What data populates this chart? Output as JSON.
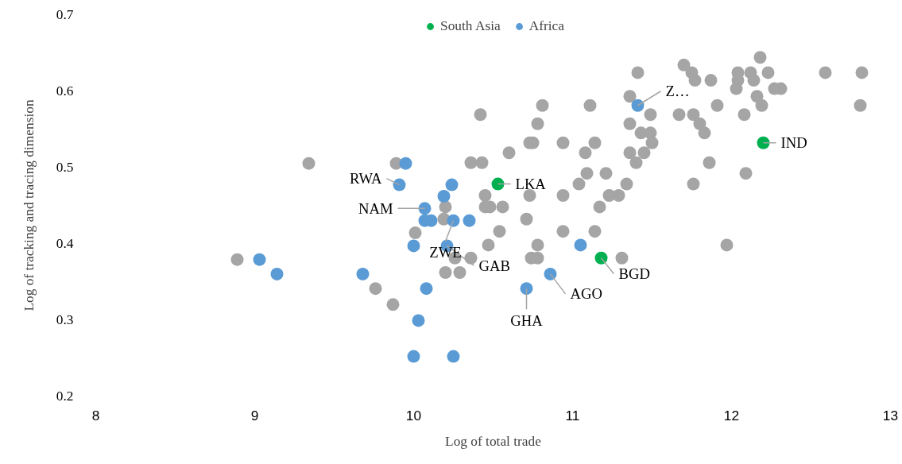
{
  "chart_data": {
    "type": "scatter",
    "xlabel": "Log of total trade",
    "ylabel": "Log of tracking and tracing dimension",
    "xlim": [
      8,
      13
    ],
    "ylim": [
      0.2,
      0.7
    ],
    "xticks": [
      8,
      9,
      10,
      11,
      12,
      13
    ],
    "yticks": [
      0.2,
      0.3,
      0.4,
      0.5,
      0.6,
      0.7
    ],
    "grid": false,
    "legend": "top",
    "marker": "circle",
    "series": [
      {
        "color": "#a5a5a5",
        "x": [
          12.18,
          11.7,
          11.75,
          11.77,
          11.41,
          11.87,
          12.04,
          12.12,
          12.23,
          12.04,
          12.14,
          12.59,
          12.82,
          12.03,
          12.27,
          12.31,
          12.16,
          12.19,
          11.36,
          12.81,
          11.91,
          10.42,
          10.81,
          11.11,
          11.49,
          11.67,
          11.76,
          12.08,
          10.78,
          11.36,
          11.8,
          11.43,
          11.49,
          11.83,
          11.5,
          10.6,
          10.73,
          10.75,
          10.94,
          11.14,
          11.08,
          11.36,
          11.45,
          11.4,
          11.86,
          10.36,
          10.43,
          11.09,
          11.21,
          12.09,
          11.04,
          11.34,
          11.76,
          10.45,
          10.73,
          10.94,
          11.23,
          11.29,
          10.2,
          10.45,
          10.48,
          10.56,
          11.17,
          10.19,
          10.71,
          10.54,
          10.94,
          11.14,
          11.97,
          10.47,
          10.78,
          11.31,
          10.36,
          10.74,
          10.78,
          10.26,
          10.2,
          10.29,
          9.34,
          9.89,
          10.01,
          8.89,
          9.76,
          9.87
        ],
        "values": [
          0.644,
          0.634,
          0.624,
          0.614,
          0.624,
          0.614,
          0.624,
          0.624,
          0.624,
          0.614,
          0.614,
          0.624,
          0.624,
          0.603,
          0.603,
          0.603,
          0.593,
          0.581,
          0.593,
          0.581,
          0.581,
          0.569,
          0.581,
          0.581,
          0.569,
          0.569,
          0.569,
          0.569,
          0.557,
          0.557,
          0.557,
          0.545,
          0.545,
          0.545,
          0.532,
          0.519,
          0.532,
          0.532,
          0.532,
          0.532,
          0.519,
          0.519,
          0.519,
          0.506,
          0.506,
          0.506,
          0.506,
          0.492,
          0.492,
          0.492,
          0.478,
          0.478,
          0.478,
          0.463,
          0.463,
          0.463,
          0.463,
          0.463,
          0.448,
          0.448,
          0.448,
          0.448,
          0.448,
          0.432,
          0.432,
          0.416,
          0.416,
          0.416,
          0.398,
          0.398,
          0.398,
          0.381,
          0.381,
          0.381,
          0.381,
          0.381,
          0.362,
          0.362,
          0.505,
          0.505,
          0.414,
          0.379,
          0.341,
          0.32
        ]
      },
      {
        "name": "South Asia",
        "color": "#00b050",
        "x": [
          10.53,
          12.2,
          11.18
        ],
        "values": [
          0.478,
          0.532,
          0.381
        ]
      },
      {
        "name": "Africa",
        "color": "#5b9bd5",
        "x": [
          9.03,
          9.14,
          9.68,
          9.95,
          9.91,
          10.24,
          10.19,
          10.07,
          10.07,
          10.11,
          10.25,
          10.35,
          10.0,
          10.21,
          10.08,
          10.03,
          10.0,
          10.25,
          10.71,
          10.86,
          11.05,
          11.41
        ],
        "values": [
          0.379,
          0.36,
          0.36,
          0.505,
          0.477,
          0.477,
          0.462,
          0.446,
          0.43,
          0.43,
          0.43,
          0.43,
          0.397,
          0.397,
          0.341,
          0.299,
          0.252,
          0.252,
          0.341,
          0.36,
          0.398,
          0.581
        ]
      }
    ],
    "annotations": [
      {
        "text": "LKA",
        "x": 10.53,
        "y": 0.478
      },
      {
        "text": "IND",
        "x": 12.2,
        "y": 0.532
      },
      {
        "text": "BGD",
        "x": 11.18,
        "y": 0.381
      },
      {
        "text": "RWA",
        "x": 9.91,
        "y": 0.477
      },
      {
        "text": "NAM",
        "x": 10.07,
        "y": 0.446
      },
      {
        "text": "ZWE",
        "x": 10.25,
        "y": 0.43
      },
      {
        "text": "GAB",
        "x": 10.21,
        "y": 0.397
      },
      {
        "text": "GHA",
        "x": 10.71,
        "y": 0.341
      },
      {
        "text": "AGO",
        "x": 10.86,
        "y": 0.36
      },
      {
        "text": "Z…",
        "x": 11.41,
        "y": 0.581
      }
    ]
  }
}
